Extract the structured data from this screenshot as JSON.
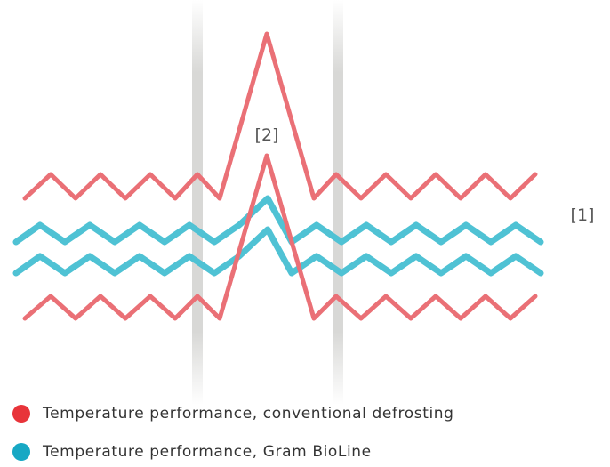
{
  "callouts": {
    "peak": "[2]",
    "band": "[1]"
  },
  "legend": [
    {
      "label": "Temperature performance, conventional defrosting",
      "color": "#e8343a"
    },
    {
      "label": "Temperature performance, Gram BioLine",
      "color": "#17a8c4"
    }
  ],
  "colors": {
    "conventional_line": "#ea7076",
    "bioline_line": "#4fc2d4",
    "defrost_marker": "#d8d8d6"
  }
}
